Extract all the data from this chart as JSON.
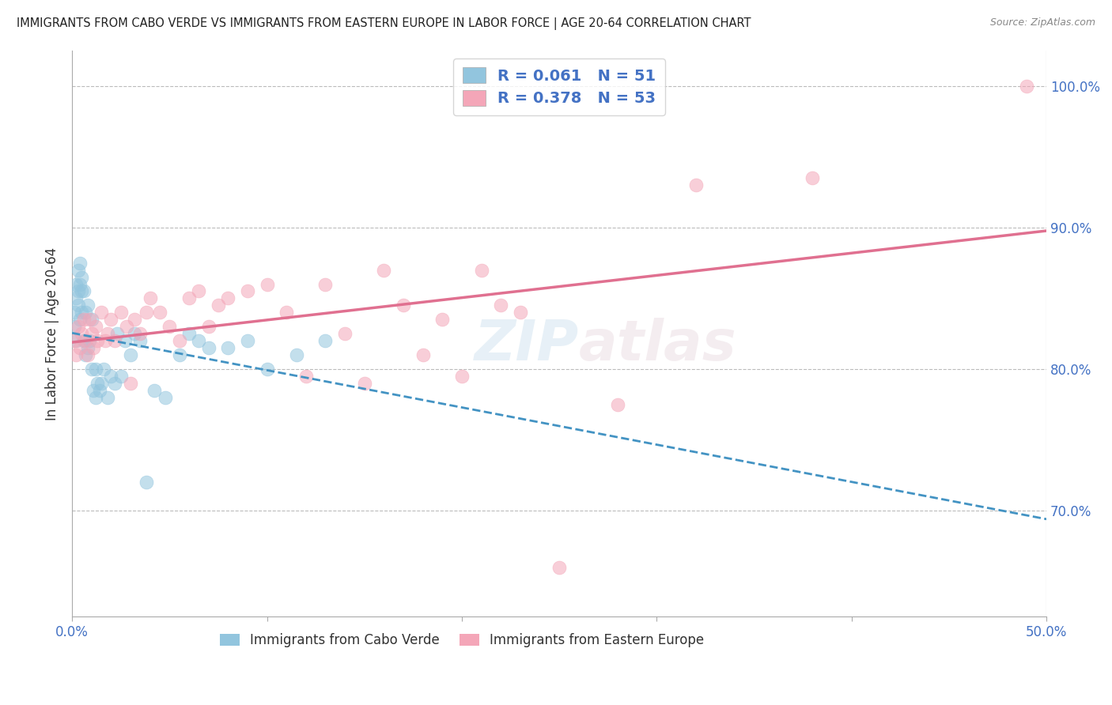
{
  "title": "IMMIGRANTS FROM CABO VERDE VS IMMIGRANTS FROM EASTERN EUROPE IN LABOR FORCE | AGE 20-64 CORRELATION CHART",
  "source": "Source: ZipAtlas.com",
  "ylabel": "In Labor Force | Age 20-64",
  "xlim": [
    0.0,
    0.5
  ],
  "ylim": [
    0.625,
    1.025
  ],
  "legend_r1": "0.061",
  "legend_n1": "51",
  "legend_r2": "0.378",
  "legend_n2": "53",
  "color_blue": "#92c5de",
  "color_pink": "#f4a6b8",
  "color_blue_line": "#4393c3",
  "color_pink_line": "#e07090",
  "cabo_verde_x": [
    0.001,
    0.001,
    0.002,
    0.002,
    0.002,
    0.003,
    0.003,
    0.003,
    0.004,
    0.004,
    0.004,
    0.005,
    0.005,
    0.005,
    0.006,
    0.006,
    0.007,
    0.007,
    0.008,
    0.008,
    0.009,
    0.01,
    0.01,
    0.011,
    0.012,
    0.012,
    0.013,
    0.014,
    0.015,
    0.016,
    0.018,
    0.02,
    0.022,
    0.023,
    0.025,
    0.027,
    0.03,
    0.032,
    0.035,
    0.038,
    0.042,
    0.048,
    0.055,
    0.06,
    0.065,
    0.07,
    0.08,
    0.09,
    0.1,
    0.115,
    0.13
  ],
  "cabo_verde_y": [
    0.84,
    0.83,
    0.86,
    0.85,
    0.82,
    0.87,
    0.855,
    0.845,
    0.875,
    0.86,
    0.835,
    0.865,
    0.855,
    0.84,
    0.855,
    0.82,
    0.84,
    0.81,
    0.845,
    0.815,
    0.82,
    0.835,
    0.8,
    0.785,
    0.8,
    0.78,
    0.79,
    0.785,
    0.79,
    0.8,
    0.78,
    0.795,
    0.79,
    0.825,
    0.795,
    0.82,
    0.81,
    0.825,
    0.82,
    0.72,
    0.785,
    0.78,
    0.81,
    0.825,
    0.82,
    0.815,
    0.815,
    0.82,
    0.8,
    0.81,
    0.82
  ],
  "eastern_europe_x": [
    0.001,
    0.002,
    0.003,
    0.004,
    0.005,
    0.006,
    0.007,
    0.008,
    0.009,
    0.01,
    0.011,
    0.012,
    0.013,
    0.015,
    0.017,
    0.018,
    0.02,
    0.022,
    0.025,
    0.028,
    0.03,
    0.032,
    0.035,
    0.038,
    0.04,
    0.045,
    0.05,
    0.055,
    0.06,
    0.065,
    0.07,
    0.075,
    0.08,
    0.09,
    0.1,
    0.11,
    0.12,
    0.13,
    0.14,
    0.15,
    0.16,
    0.17,
    0.18,
    0.19,
    0.2,
    0.21,
    0.22,
    0.23,
    0.25,
    0.28,
    0.32,
    0.38,
    0.49
  ],
  "eastern_europe_y": [
    0.82,
    0.81,
    0.83,
    0.815,
    0.825,
    0.835,
    0.82,
    0.81,
    0.835,
    0.825,
    0.815,
    0.83,
    0.82,
    0.84,
    0.82,
    0.825,
    0.835,
    0.82,
    0.84,
    0.83,
    0.79,
    0.835,
    0.825,
    0.84,
    0.85,
    0.84,
    0.83,
    0.82,
    0.85,
    0.855,
    0.83,
    0.845,
    0.85,
    0.855,
    0.86,
    0.84,
    0.795,
    0.86,
    0.825,
    0.79,
    0.87,
    0.845,
    0.81,
    0.835,
    0.795,
    0.87,
    0.845,
    0.84,
    0.66,
    0.775,
    0.93,
    0.935,
    1.0
  ],
  "watermark_zip": "ZIP",
  "watermark_atlas": "atlas",
  "background_color": "#ffffff",
  "grid_color": "#bbbbbb",
  "text_color": "#333333",
  "axis_color": "#4472c4"
}
